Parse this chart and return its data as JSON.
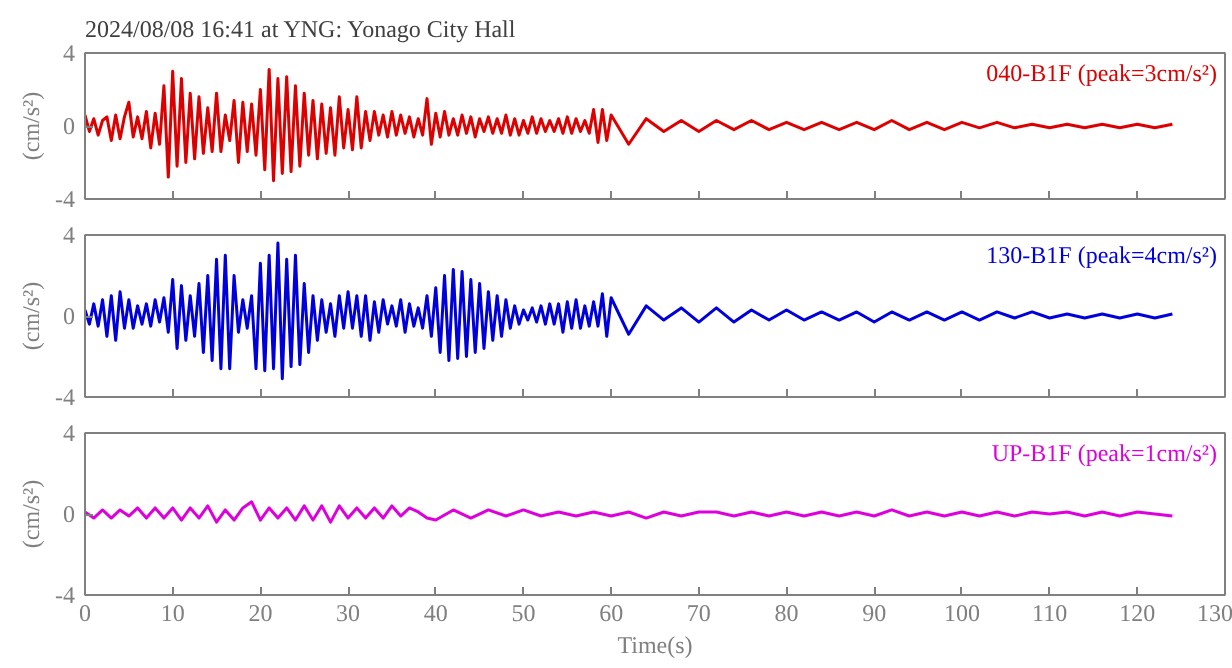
{
  "chart_data": [
    {
      "type": "line",
      "title": "2024/08/08 16:41 at YNG: Yonago City Hall",
      "ylabel": "(cm/s²)",
      "xlim": [
        0,
        130
      ],
      "xticks": [
        0,
        10,
        20,
        30,
        40,
        50,
        60,
        70,
        80,
        90,
        100,
        110,
        120,
        130
      ],
      "ylim": [
        -4,
        4
      ],
      "yticks": [
        -4,
        0,
        4
      ],
      "tick_labels": "y",
      "grid": false,
      "marker": "none",
      "line_style": "solid",
      "series": [
        {
          "name": "040-B1F (peak=3cm/s²)",
          "color": "#dd0000",
          "x": [
            0,
            0.5,
            1,
            1.5,
            2,
            2.5,
            3,
            3.5,
            4,
            4.5,
            5,
            5.5,
            6,
            6.5,
            7,
            7.5,
            8,
            8.5,
            9,
            9.5,
            10,
            10.5,
            11,
            11.5,
            12,
            12.5,
            13,
            13.5,
            14,
            14.5,
            15,
            15.5,
            16,
            16.5,
            17,
            17.5,
            18,
            18.5,
            19,
            19.5,
            20,
            20.5,
            21,
            21.5,
            22,
            22.5,
            23,
            23.5,
            24,
            24.5,
            25,
            25.5,
            26,
            26.5,
            27,
            27.5,
            28,
            28.5,
            29,
            29.5,
            30,
            30.5,
            31,
            31.5,
            32,
            32.5,
            33,
            33.5,
            34,
            34.5,
            35,
            35.5,
            36,
            36.5,
            37,
            37.5,
            38,
            38.5,
            39,
            39.5,
            40,
            40.5,
            41,
            41.5,
            42,
            42.5,
            43,
            43.5,
            44,
            44.5,
            45,
            45.5,
            46,
            46.5,
            47,
            47.5,
            48,
            48.5,
            49,
            49.5,
            50,
            50.5,
            51,
            51.5,
            52,
            52.5,
            53,
            53.5,
            54,
            54.5,
            55,
            55.5,
            56,
            56.5,
            57,
            57.5,
            58,
            58.5,
            59,
            59.5,
            60,
            62,
            64,
            66,
            68,
            70,
            72,
            74,
            76,
            78,
            80,
            82,
            84,
            86,
            88,
            90,
            92,
            94,
            96,
            98,
            100,
            102,
            104,
            106,
            108,
            110,
            112,
            114,
            116,
            118,
            120,
            122,
            124
          ],
          "values": [
            0.6,
            -0.3,
            0.4,
            -0.5,
            0.3,
            0.5,
            -0.8,
            0.6,
            -0.7,
            0.5,
            1.3,
            -0.6,
            0.5,
            -0.7,
            0.8,
            -1.2,
            0.7,
            -1.0,
            2.2,
            -2.8,
            3.0,
            -2.2,
            2.6,
            -2.0,
            1.8,
            -1.8,
            1.6,
            -1.5,
            1.0,
            -1.4,
            1.8,
            -1.4,
            0.6,
            -0.8,
            1.4,
            -2.0,
            1.3,
            -1.4,
            1.2,
            -1.6,
            2.0,
            -2.4,
            3.1,
            -3.0,
            2.6,
            -2.6,
            2.7,
            -2.5,
            2.2,
            -2.2,
            1.8,
            -1.6,
            1.4,
            -1.8,
            1.2,
            -1.5,
            1.0,
            -1.6,
            1.6,
            -1.2,
            0.9,
            -1.3,
            1.6,
            -1.2,
            0.8,
            -0.8,
            0.8,
            -0.5,
            0.6,
            -0.6,
            0.8,
            -0.5,
            0.6,
            -0.4,
            0.5,
            -0.6,
            0.4,
            -0.5,
            1.5,
            -1.0,
            0.7,
            -0.6,
            0.8,
            -0.5,
            0.4,
            -0.5,
            0.6,
            -0.4,
            0.5,
            -0.6,
            0.4,
            -0.3,
            0.5,
            -0.4,
            0.4,
            -0.4,
            0.6,
            -0.5,
            0.4,
            -0.5,
            0.3,
            -0.4,
            0.5,
            -0.4,
            0.4,
            -0.3,
            0.3,
            -0.3,
            0.4,
            -0.4,
            0.5,
            -0.4,
            0.4,
            -0.3,
            0.3,
            -0.4,
            0.9,
            -0.9,
            0.9,
            -0.8,
            0.6,
            -1.0,
            0.4,
            -0.3,
            0.3,
            -0.3,
            0.3,
            -0.2,
            0.3,
            -0.2,
            0.2,
            -0.2,
            0.2,
            -0.2,
            0.2,
            -0.2,
            0.3,
            -0.2,
            0.2,
            -0.2,
            0.2,
            -0.1,
            0.2,
            -0.1,
            0.1,
            -0.1,
            0.1,
            -0.1,
            0.1,
            -0.1,
            0.1,
            -0.1,
            0.1
          ]
        }
      ]
    },
    {
      "type": "line",
      "ylabel": "(cm/s²)",
      "xlim": [
        0,
        130
      ],
      "xticks": [
        0,
        10,
        20,
        30,
        40,
        50,
        60,
        70,
        80,
        90,
        100,
        110,
        120,
        130
      ],
      "ylim": [
        -4,
        4
      ],
      "yticks": [
        -4,
        0,
        4
      ],
      "tick_labels": "y",
      "grid": false,
      "marker": "none",
      "line_style": "solid",
      "series": [
        {
          "name": "130-B1F (peak=4cm/s²)",
          "color": "#0000dd",
          "x": [
            0,
            0.5,
            1,
            1.5,
            2,
            2.5,
            3,
            3.5,
            4,
            4.5,
            5,
            5.5,
            6,
            6.5,
            7,
            7.5,
            8,
            8.5,
            9,
            9.5,
            10,
            10.5,
            11,
            11.5,
            12,
            12.5,
            13,
            13.5,
            14,
            14.5,
            15,
            15.5,
            16,
            16.5,
            17,
            17.5,
            18,
            18.5,
            19,
            19.5,
            20,
            20.5,
            21,
            21.5,
            22,
            22.5,
            23,
            23.5,
            24,
            24.5,
            25,
            25.5,
            26,
            26.5,
            27,
            27.5,
            28,
            28.5,
            29,
            29.5,
            30,
            30.5,
            31,
            31.5,
            32,
            32.5,
            33,
            33.5,
            34,
            34.5,
            35,
            35.5,
            36,
            36.5,
            37,
            37.5,
            38,
            38.5,
            39,
            39.5,
            40,
            40.5,
            41,
            41.5,
            42,
            42.5,
            43,
            43.5,
            44,
            44.5,
            45,
            45.5,
            46,
            46.5,
            47,
            47.5,
            48,
            48.5,
            49,
            49.5,
            50,
            50.5,
            51,
            51.5,
            52,
            52.5,
            53,
            53.5,
            54,
            54.5,
            55,
            55.5,
            56,
            56.5,
            57,
            57.5,
            58,
            58.5,
            59,
            59.5,
            60,
            62,
            64,
            66,
            68,
            70,
            72,
            74,
            76,
            78,
            80,
            82,
            84,
            86,
            88,
            90,
            92,
            94,
            96,
            98,
            100,
            102,
            104,
            106,
            108,
            110,
            112,
            114,
            116,
            118,
            120,
            122,
            124
          ],
          "values": [
            0.3,
            -0.4,
            0.6,
            -0.5,
            0.8,
            -1.0,
            1.0,
            -1.2,
            1.2,
            -0.6,
            0.8,
            -0.6,
            0.5,
            -0.4,
            0.6,
            -0.5,
            0.8,
            -0.3,
            0.9,
            -0.8,
            1.8,
            -1.6,
            1.5,
            -1.2,
            1.0,
            -1.0,
            1.6,
            -1.8,
            2.0,
            -2.2,
            2.8,
            -2.6,
            3.0,
            -2.6,
            2.0,
            -0.8,
            0.8,
            -0.6,
            1.0,
            -2.6,
            2.6,
            -2.7,
            3.0,
            -2.6,
            3.6,
            -3.1,
            2.8,
            -2.5,
            3.0,
            -2.4,
            1.6,
            -1.8,
            1.0,
            -1.2,
            0.8,
            -0.8,
            0.6,
            -1.0,
            1.0,
            -0.6,
            1.2,
            -0.6,
            1.0,
            -1.0,
            1.0,
            -1.2,
            0.7,
            -0.8,
            0.8,
            -0.4,
            0.5,
            -0.5,
            0.8,
            -0.8,
            0.6,
            -0.5,
            0.4,
            -0.6,
            1.0,
            -1.0,
            1.4,
            -1.8,
            2.0,
            -2.2,
            2.3,
            -2.1,
            2.2,
            -2.0,
            1.8,
            -1.8,
            1.6,
            -1.6,
            1.2,
            -1.2,
            1.0,
            -1.0,
            0.8,
            -0.6,
            0.5,
            -0.4,
            0.3,
            -0.2,
            0.4,
            -0.3,
            0.5,
            -0.4,
            0.6,
            -0.4,
            0.6,
            -0.8,
            0.7,
            -0.6,
            0.8,
            -0.6,
            0.5,
            -0.5,
            0.7,
            -0.5,
            1.1,
            -1.0,
            0.9,
            -0.9,
            0.5,
            -0.2,
            0.4,
            -0.3,
            0.4,
            -0.3,
            0.3,
            -0.2,
            0.3,
            -0.2,
            0.2,
            -0.2,
            0.2,
            -0.3,
            0.2,
            -0.2,
            0.2,
            -0.2,
            0.2,
            -0.2,
            0.2,
            -0.1,
            0.2,
            -0.1,
            0.1,
            -0.1,
            0.1,
            -0.1,
            0.1,
            -0.1,
            0.1
          ]
        }
      ]
    },
    {
      "type": "line",
      "ylabel": "(cm/s²)",
      "xlabel": "Time(s)",
      "xlim": [
        0,
        130
      ],
      "xticks": [
        0,
        10,
        20,
        30,
        40,
        50,
        60,
        70,
        80,
        90,
        100,
        110,
        120,
        130
      ],
      "ylim": [
        -4,
        4
      ],
      "yticks": [
        -4,
        0,
        4
      ],
      "grid": false,
      "marker": "none",
      "line_style": "solid",
      "series": [
        {
          "name": "UP-B1F (peak=1cm/s²)",
          "color": "#dd00dd",
          "x": [
            0,
            1,
            2,
            3,
            4,
            5,
            6,
            7,
            8,
            9,
            10,
            11,
            12,
            13,
            14,
            15,
            16,
            17,
            18,
            19,
            20,
            21,
            22,
            23,
            24,
            25,
            26,
            27,
            28,
            29,
            30,
            31,
            32,
            33,
            34,
            35,
            36,
            37,
            38,
            39,
            40,
            42,
            44,
            46,
            48,
            50,
            52,
            54,
            56,
            58,
            60,
            62,
            64,
            66,
            68,
            70,
            72,
            74,
            76,
            78,
            80,
            82,
            84,
            86,
            88,
            90,
            92,
            94,
            96,
            98,
            100,
            102,
            104,
            106,
            108,
            110,
            112,
            114,
            116,
            118,
            120,
            122,
            124
          ],
          "values": [
            0.1,
            -0.2,
            0.2,
            -0.2,
            0.2,
            -0.1,
            0.3,
            -0.2,
            0.3,
            -0.2,
            0.3,
            -0.3,
            0.3,
            -0.2,
            0.4,
            -0.4,
            0.2,
            -0.3,
            0.3,
            0.6,
            -0.3,
            0.3,
            -0.2,
            0.3,
            -0.3,
            0.4,
            -0.3,
            0.4,
            -0.4,
            0.4,
            -0.2,
            0.3,
            -0.2,
            0.3,
            -0.2,
            0.4,
            -0.1,
            0.3,
            0.1,
            -0.2,
            -0.3,
            0.2,
            -0.2,
            0.2,
            -0.1,
            0.2,
            -0.1,
            0.1,
            -0.1,
            0.1,
            -0.1,
            0.1,
            -0.2,
            0.1,
            -0.1,
            0.1,
            0.1,
            -0.1,
            0.1,
            -0.1,
            0.1,
            -0.1,
            0.1,
            -0.1,
            0.1,
            -0.1,
            0.2,
            -0.1,
            0.1,
            -0.1,
            0.1,
            -0.1,
            0.1,
            -0.1,
            0.1,
            0.0,
            0.1,
            -0.1,
            0.1,
            -0.1,
            0.1,
            0.0,
            -0.1
          ]
        }
      ]
    }
  ]
}
